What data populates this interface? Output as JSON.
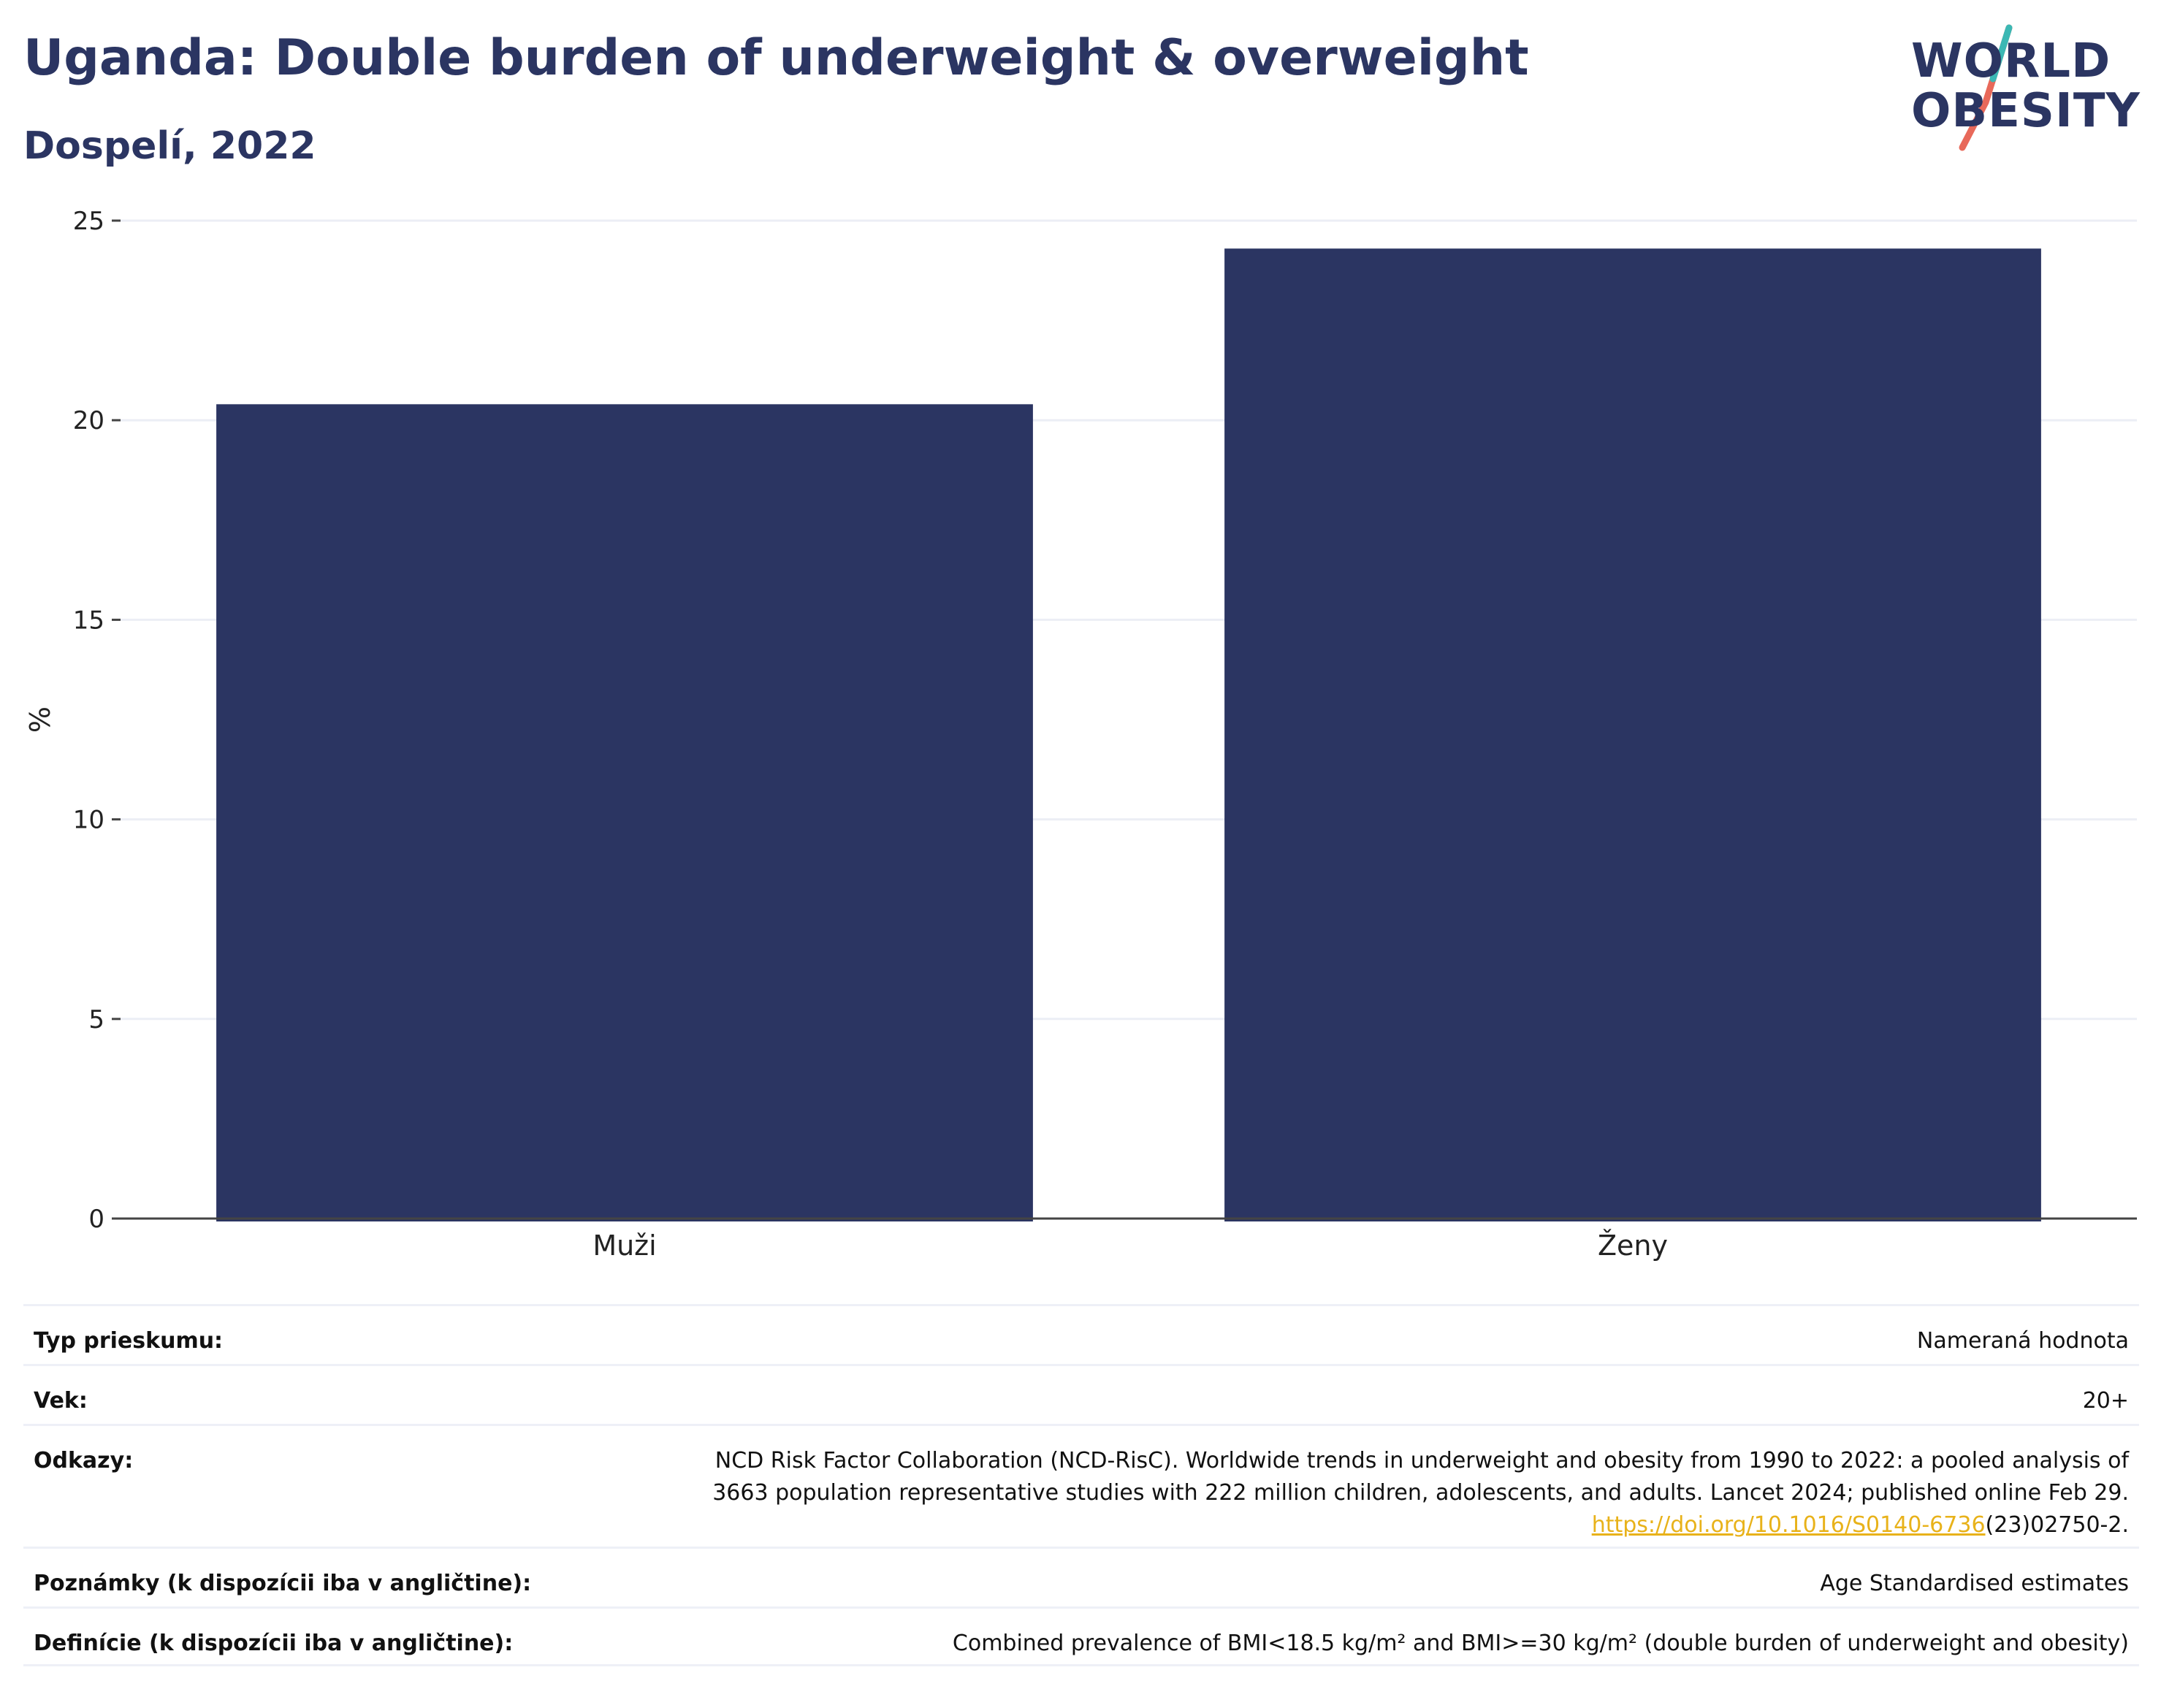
{
  "header": {
    "title": "Uganda: Double burden of underweight & overweight",
    "subtitle": "Dospelí, 2022"
  },
  "logo": {
    "line1": "WORLD",
    "line2": "OBESITY",
    "colors": {
      "text": "#2b3562",
      "slash_top": "#3bb8b4",
      "slash_bottom": "#e8695a"
    }
  },
  "colors": {
    "bar": "#2b3562",
    "grid": "#eceef5",
    "axis": "#444444",
    "link": "#e8b21a"
  },
  "chart_data": {
    "type": "bar",
    "categories": [
      "Muži",
      "Ženy"
    ],
    "values": [
      20.4,
      24.3
    ],
    "ylabel": "%",
    "ylim": [
      0,
      25
    ],
    "yticks": [
      "0",
      "5",
      "10",
      "15",
      "20",
      "25"
    ],
    "grid": true
  },
  "info": {
    "rows": [
      {
        "label": "Typ prieskumu:",
        "value": "Nameraná hodnota"
      },
      {
        "label": "Vek:",
        "value": "20+"
      },
      {
        "label": "Odkazy:",
        "value_line1": "NCD Risk Factor Collaboration (NCD-RisC). Worldwide trends in underweight and obesity from 1990 to 2022: a pooled analysis of",
        "value_line2": "3663 population representative studies with 222 million children, adolescents, and adults. Lancet 2024; published online Feb 29.",
        "link_text": "https://doi.org/10.1016/S0140-6736",
        "link_suffix": "(23)02750-2."
      },
      {
        "label": "Poznámky (k dispozícii iba v angličtine):",
        "value": "Age Standardised estimates"
      },
      {
        "label": "Definície (k dispozícii iba v angličtine):",
        "value": "Combined prevalence of BMI<18.5 kg/m² and BMI>=30 kg/m² (double burden of underweight and obesity)"
      }
    ]
  }
}
